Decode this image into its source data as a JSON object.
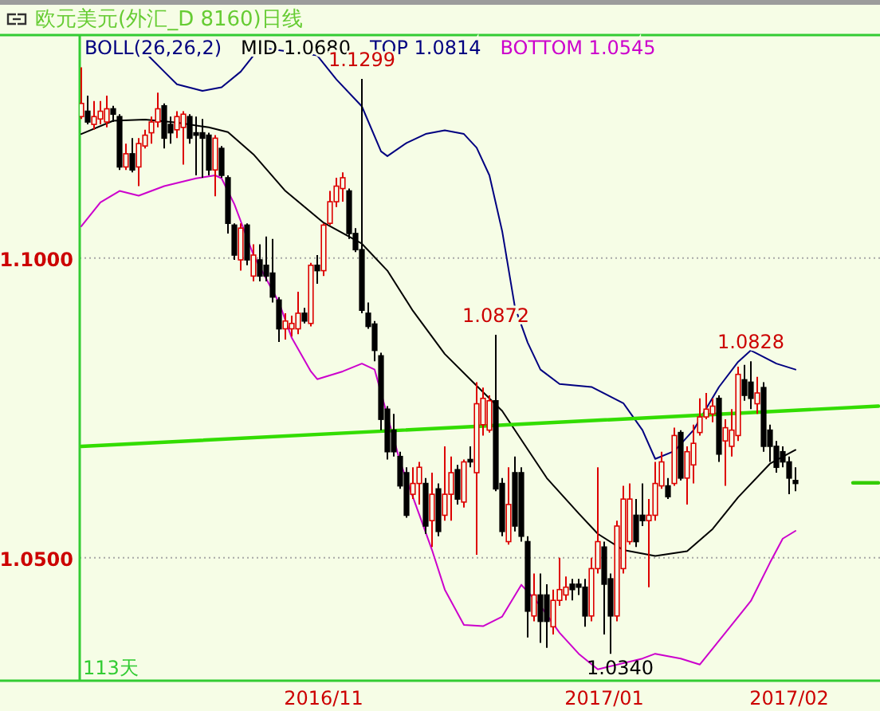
{
  "chart_data": {
    "type": "candlestick",
    "title": "欧元美元(外汇_D 8160)日线",
    "legend_title": "BOLL(26,26,2)",
    "legend": "top left",
    "grid": "y",
    "ylim": [
      1.0295,
      1.1372
    ],
    "yticks": [
      {
        "value": 1.1,
        "label": "1.1000"
      },
      {
        "value": 1.05,
        "label": "1.0500"
      }
    ],
    "categories": [
      null,
      null,
      null,
      null,
      null,
      null,
      null,
      null,
      null,
      null,
      null,
      null,
      null,
      null,
      null,
      null,
      null,
      null,
      null,
      null,
      null,
      null,
      null,
      null,
      null,
      null,
      null,
      null,
      null,
      null,
      null,
      null,
      null,
      null,
      null,
      null,
      null,
      null,
      "2016/11",
      null,
      null,
      null,
      null,
      null,
      null,
      null,
      null,
      null,
      null,
      null,
      null,
      null,
      null,
      null,
      null,
      null,
      null,
      null,
      null,
      null,
      null,
      null,
      null,
      null,
      null,
      null,
      null,
      null,
      null,
      null,
      null,
      null,
      null,
      null,
      null,
      null,
      null,
      null,
      null,
      null,
      null,
      null,
      "2017/01",
      null,
      null,
      null,
      null,
      null,
      null,
      null,
      null,
      null,
      null,
      null,
      null,
      null,
      null,
      null,
      null,
      null,
      null,
      null,
      null,
      null,
      null,
      null,
      null,
      null,
      null,
      null,
      null,
      "2017/02",
      null,
      null,
      null,
      null,
      null,
      null,
      null,
      null,
      null,
      null,
      null,
      null,
      null,
      null
    ],
    "ohlc": [
      [
        1.1236,
        1.1318,
        1.1232,
        1.1258
      ],
      [
        1.1245,
        1.1271,
        1.1223,
        1.1227
      ],
      [
        1.1223,
        1.1262,
        1.1214,
        1.1236
      ],
      [
        1.1232,
        1.1262,
        1.1223,
        1.1245
      ],
      [
        1.1227,
        1.1271,
        1.1218,
        1.1249
      ],
      [
        1.1249,
        1.1254,
        1.1227,
        1.124
      ],
      [
        1.1236,
        1.124,
        1.1147,
        1.1152
      ],
      [
        1.1152,
        1.1191,
        1.1147,
        1.1174
      ],
      [
        1.1174,
        1.12,
        1.1143,
        1.1147
      ],
      [
        1.1152,
        1.12,
        1.112,
        1.1191
      ],
      [
        1.1187,
        1.1214,
        1.1183,
        1.1205
      ],
      [
        1.1209,
        1.1236,
        1.1191,
        1.1227
      ],
      [
        1.1227,
        1.1276,
        1.1218,
        1.1249
      ],
      [
        1.1254,
        1.1258,
        1.1183,
        1.12
      ],
      [
        1.1223,
        1.1236,
        1.1191,
        1.1209
      ],
      [
        1.1214,
        1.1245,
        1.12,
        1.1236
      ],
      [
        1.1218,
        1.1245,
        1.1156,
        1.124
      ],
      [
        1.1236,
        1.124,
        1.1191,
        1.12
      ],
      [
        1.1209,
        1.1236,
        1.1138,
        1.1205
      ],
      [
        1.1209,
        1.1232,
        1.1134,
        1.12
      ],
      [
        1.1205,
        1.1209,
        1.1138,
        1.1147
      ],
      [
        1.1147,
        1.1205,
        1.1103,
        1.12
      ],
      [
        1.1183,
        1.1187,
        1.1134,
        1.1138
      ],
      [
        1.1134,
        1.1138,
        1.1041,
        1.1058
      ],
      [
        1.1055,
        1.1058,
        1.0997,
        1.1005
      ],
      [
        1.0997,
        1.1058,
        1.0979,
        1.105
      ],
      [
        1.1055,
        1.1058,
        1.0988,
        1.0997
      ],
      [
        1.097,
        1.1023,
        1.0961,
        1.1005
      ],
      [
        1.0997,
        1.1023,
        1.0961,
        1.097
      ],
      [
        1.0988,
        1.1036,
        1.0961,
        1.097
      ],
      [
        1.0975,
        1.1032,
        1.0926,
        1.0935
      ],
      [
        1.093,
        1.0935,
        1.086,
        1.0882
      ],
      [
        1.0882,
        1.0908,
        1.0864,
        1.0895
      ],
      [
        1.0882,
        1.0904,
        1.0869,
        1.0891
      ],
      [
        1.0882,
        1.0944,
        1.0873,
        1.0908
      ],
      [
        1.0908,
        1.0917,
        1.0891,
        1.0895
      ],
      [
        1.0891,
        1.0992,
        1.0886,
        1.0988
      ],
      [
        1.0988,
        1.1005,
        1.0957,
        1.0979
      ],
      [
        1.0979,
        1.1058,
        1.097,
        1.1055
      ],
      [
        1.1058,
        1.1112,
        1.1055,
        1.1094
      ],
      [
        1.1094,
        1.1134,
        1.1085,
        1.112
      ],
      [
        1.1116,
        1.1143,
        1.1094,
        1.1134
      ],
      [
        1.1112,
        1.1116,
        1.1032,
        1.1041
      ],
      [
        1.1041,
        1.105,
        1.101,
        1.1014
      ],
      [
        1.1014,
        1.1299,
        1.0908,
        1.0913
      ],
      [
        1.0908,
        1.0926,
        1.0882,
        1.0886
      ],
      [
        1.089,
        1.0895,
        1.0828,
        1.0846
      ],
      [
        1.0837,
        1.0842,
        1.0713,
        1.0731
      ],
      [
        1.0748,
        1.0753,
        1.0664,
        1.0677
      ],
      [
        1.0713,
        1.074,
        1.0669,
        1.0677
      ],
      [
        1.0669,
        1.0677,
        1.0615,
        1.062
      ],
      [
        1.0642,
        1.0651,
        1.0567,
        1.0571
      ],
      [
        1.0606,
        1.0651,
        1.0598,
        1.0624
      ],
      [
        1.0624,
        1.066,
        1.0589,
        1.0651
      ],
      [
        1.0624,
        1.0633,
        1.054,
        1.0553
      ],
      [
        1.0562,
        1.0642,
        1.0518,
        1.0606
      ],
      [
        1.0615,
        1.0624,
        1.0536,
        1.0544
      ],
      [
        1.0571,
        1.0686,
        1.0562,
        1.0606
      ],
      [
        1.0606,
        1.0669,
        1.0562,
        1.0642
      ],
      [
        1.0647,
        1.0655,
        1.0589,
        1.0598
      ],
      [
        1.0593,
        1.0664,
        1.0584,
        1.066
      ],
      [
        1.0664,
        1.0686,
        1.0651,
        1.066
      ],
      [
        1.0642,
        1.0793,
        1.0505,
        1.0757
      ],
      [
        1.0722,
        1.0784,
        1.0704,
        1.0766
      ],
      [
        1.0713,
        1.0771,
        1.0709,
        1.0762
      ],
      [
        1.0762,
        1.0872,
        1.0611,
        1.0615
      ],
      [
        1.0624,
        1.0633,
        1.0536,
        1.0544
      ],
      [
        1.0527,
        1.0651,
        1.0522,
        1.0589
      ],
      [
        1.0642,
        1.0669,
        1.0544,
        1.0553
      ],
      [
        1.0642,
        1.0651,
        1.0527,
        1.0536
      ],
      [
        1.0527,
        1.0536,
        1.0367,
        1.0411
      ],
      [
        1.0403,
        1.0474,
        1.0394,
        1.0438
      ],
      [
        1.0438,
        1.0474,
        1.0358,
        1.0394
      ],
      [
        1.0438,
        1.0456,
        1.035,
        1.0394
      ],
      [
        1.0385,
        1.0447,
        1.0372,
        1.0429
      ],
      [
        1.0429,
        1.05,
        1.042,
        1.0447
      ],
      [
        1.0438,
        1.0469,
        1.0429,
        1.0451
      ],
      [
        1.0456,
        1.0465,
        1.0429,
        1.0447
      ],
      [
        1.0456,
        1.0465,
        1.0438,
        1.0451
      ],
      [
        1.0451,
        1.0465,
        1.0385,
        1.0403
      ],
      [
        1.0403,
        1.05,
        1.0394,
        1.0482
      ],
      [
        1.0482,
        1.0651,
        1.0474,
        1.0527
      ],
      [
        1.0518,
        1.0527,
        1.0372,
        1.0456
      ],
      [
        1.0465,
        1.0474,
        1.034,
        1.0403
      ],
      [
        1.0403,
        1.0562,
        1.0394,
        1.0553
      ],
      [
        1.0482,
        1.062,
        1.0474,
        1.0598
      ],
      [
        1.0527,
        1.0624,
        1.0522,
        1.0598
      ],
      [
        1.0571,
        1.0598,
        1.0518,
        1.0527
      ],
      [
        1.0571,
        1.0624,
        1.0553,
        1.0562
      ],
      [
        1.0562,
        1.0598,
        1.0451,
        1.0571
      ],
      [
        1.0571,
        1.066,
        1.0562,
        1.0624
      ],
      [
        1.062,
        1.0677,
        1.0615,
        1.066
      ],
      [
        1.062,
        1.0633,
        1.0598,
        1.0602
      ],
      [
        1.0624,
        1.0717,
        1.062,
        1.0704
      ],
      [
        1.0709,
        1.0713,
        1.0629,
        1.0633
      ],
      [
        1.0633,
        1.0686,
        1.0589,
        1.0677
      ],
      [
        1.0655,
        1.0722,
        1.0624,
        1.0691
      ],
      [
        1.0709,
        1.0766,
        1.0704,
        1.0735
      ],
      [
        1.0735,
        1.0775,
        1.0731,
        1.0748
      ],
      [
        1.074,
        1.0766,
        1.0726,
        1.0753
      ],
      [
        1.0766,
        1.0771,
        1.066,
        1.0673
      ],
      [
        1.0695,
        1.0731,
        1.062,
        1.0717
      ],
      [
        1.0686,
        1.0748,
        1.0669,
        1.0713
      ],
      [
        1.0704,
        1.0819,
        1.0695,
        1.0806
      ],
      [
        1.0797,
        1.0822,
        1.0762,
        1.0771
      ],
      [
        1.0793,
        1.0828,
        1.0748,
        1.0766
      ],
      [
        1.0757,
        1.0802,
        1.074,
        1.0775
      ],
      [
        1.0784,
        1.0793,
        1.0677,
        1.0686
      ],
      [
        1.0713,
        1.0722,
        1.066,
        1.0686
      ],
      [
        1.0686,
        1.0695,
        1.0642,
        1.0651
      ],
      [
        1.0677,
        1.0686,
        1.0651,
        1.066
      ],
      [
        1.066,
        1.0669,
        1.0606,
        1.0633
      ],
      [
        1.0629,
        1.0651,
        1.0611,
        1.0624
      ],
      null,
      null,
      null,
      null,
      null,
      null,
      null,
      null,
      null,
      null,
      null,
      null,
      null
    ],
    "series": [
      {
        "name": "MID 1.0680",
        "type": "line",
        "color": "#000000",
        "values": [
          1.1207,
          null,
          null,
          null,
          null,
          1.1229,
          null,
          null,
          null,
          null,
          1.1231,
          null,
          null,
          null,
          null,
          1.1226,
          null,
          null,
          null,
          null,
          1.1218,
          null,
          null,
          1.121,
          null,
          null,
          null,
          1.1173,
          null,
          null,
          null,
          null,
          1.1112,
          null,
          null,
          null,
          null,
          null,
          1.1059,
          null,
          null,
          null,
          null,
          null,
          1.1024,
          null,
          null,
          null,
          1.0979,
          null,
          null,
          null,
          1.0912,
          null,
          null,
          null,
          null,
          1.084,
          null,
          null,
          null,
          null,
          1.0787,
          null,
          null,
          null,
          1.0745,
          null,
          null,
          null,
          1.0681,
          null,
          null,
          1.0633,
          null,
          null,
          null,
          null,
          1.0574,
          null,
          null,
          1.054,
          null,
          null,
          null,
          1.0513,
          null,
          null,
          null,
          null,
          1.0503,
          null,
          null,
          null,
          null,
          1.0511,
          null,
          null,
          null,
          1.0548,
          null,
          null,
          null,
          1.0601,
          null,
          null,
          null,
          null,
          1.0657,
          null,
          null,
          null,
          1.068,
          null,
          null,
          null,
          null,
          null,
          null,
          null,
          null,
          null,
          null,
          null,
          null,
          null
        ]
      },
      {
        "name": "TOP 1.0814",
        "type": "line",
        "color": "#000080",
        "values": [
          null,
          null,
          null,
          null,
          null,
          null,
          null,
          null,
          null,
          null,
          1.1343,
          null,
          null,
          1.1311,
          null,
          1.129,
          null,
          null,
          null,
          1.1279,
          null,
          null,
          1.1285,
          null,
          null,
          1.1311,
          null,
          1.1338,
          1.1351,
          null,
          null,
          null,
          null,
          null,
          null,
          null,
          null,
          1.1338,
          null,
          null,
          1.1298,
          null,
          null,
          null,
          1.1253,
          null,
          null,
          1.1178,
          1.117,
          null,
          null,
          1.1192,
          null,
          null,
          1.1207,
          null,
          null,
          1.1213,
          null,
          null,
          1.1207,
          null,
          1.1184,
          null,
          1.1138,
          null,
          1.1045,
          null,
          1.0918,
          null,
          1.0859,
          null,
          1.0814,
          null,
          null,
          1.079,
          null,
          null,
          null,
          null,
          1.0785,
          null,
          null,
          null,
          null,
          1.0758,
          null,
          null,
          1.0713,
          null,
          1.0665,
          null,
          null,
          1.0678,
          null,
          null,
          1.0713,
          null,
          null,
          null,
          1.0785,
          null,
          null,
          1.0827,
          null,
          1.0846,
          null,
          null,
          null,
          1.0824,
          null,
          null,
          1.0814,
          null,
          null,
          null,
          null,
          null,
          null,
          null,
          null,
          null,
          null,
          null,
          null,
          null
        ]
      },
      {
        "name": "BOTTOM 1.0545",
        "type": "line",
        "color": "#cc00cc",
        "values": [
          1.1053,
          null,
          null,
          1.1093,
          null,
          null,
          1.1112,
          null,
          null,
          1.1104,
          null,
          null,
          null,
          1.112,
          null,
          null,
          null,
          null,
          1.1133,
          null,
          null,
          1.1138,
          1.1133,
          null,
          1.109,
          null,
          null,
          1.1005,
          null,
          null,
          null,
          1.0926,
          null,
          1.0867,
          null,
          null,
          1.0811,
          1.0798,
          null,
          null,
          null,
          1.0811,
          null,
          null,
          1.0824,
          null,
          1.0814,
          null,
          null,
          null,
          1.066,
          null,
          null,
          1.0572,
          null,
          1.0513,
          null,
          1.0447,
          null,
          null,
          1.0388,
          null,
          null,
          1.0386,
          null,
          null,
          1.0402,
          null,
          null,
          1.0455,
          null,
          null,
          1.042,
          null,
          null,
          1.0375,
          null,
          null,
          1.034,
          null,
          null,
          1.0314,
          null,
          null,
          null,
          null,
          null,
          null,
          1.0332,
          null,
          1.034,
          null,
          null,
          null,
          1.0332,
          null,
          null,
          1.0322,
          null,
          null,
          null,
          1.0375,
          null,
          null,
          null,
          1.0428,
          null,
          null,
          1.0492,
          null,
          1.0532,
          null,
          1.0545,
          null,
          null,
          null,
          null,
          null,
          null,
          null,
          null,
          null,
          null,
          null,
          null,
          null
        ]
      },
      {
        "type": "line",
        "color": "#33dd00",
        "values": [
          1.0686,
          null,
          null,
          null,
          null,
          null,
          null,
          null,
          null,
          null,
          null,
          null,
          null,
          null,
          null,
          null,
          null,
          null,
          null,
          null,
          null,
          null,
          null,
          null,
          null,
          null,
          null,
          null,
          null,
          null,
          null,
          null,
          null,
          null,
          null,
          null,
          null,
          null,
          null,
          null,
          null,
          null,
          null,
          null,
          null,
          null,
          null,
          null,
          null,
          null,
          null,
          null,
          null,
          null,
          null,
          null,
          null,
          null,
          null,
          null,
          null,
          null,
          null,
          null,
          null,
          null,
          null,
          null,
          null,
          null,
          null,
          null,
          null,
          null,
          null,
          null,
          null,
          null,
          null,
          null,
          null,
          null,
          null,
          null,
          null,
          null,
          null,
          null,
          null,
          null,
          null,
          null,
          null,
          null,
          null,
          null,
          null,
          null,
          null,
          null,
          null,
          null,
          null,
          null,
          null,
          null,
          null,
          null,
          null,
          null,
          null,
          null,
          null,
          null,
          null,
          null,
          null,
          null,
          null,
          null,
          null,
          null,
          null,
          null,
          null,
          1.0753
        ]
      },
      {
        "type": "line",
        "color": "#33cc00",
        "values": [
          null,
          null,
          null,
          null,
          null,
          null,
          null,
          null,
          null,
          null,
          null,
          null,
          null,
          null,
          null,
          null,
          null,
          null,
          null,
          null,
          null,
          null,
          null,
          null,
          null,
          null,
          null,
          null,
          null,
          null,
          null,
          null,
          null,
          null,
          null,
          null,
          null,
          null,
          null,
          null,
          null,
          null,
          null,
          null,
          null,
          null,
          null,
          null,
          null,
          null,
          null,
          null,
          null,
          null,
          null,
          null,
          null,
          null,
          null,
          null,
          null,
          null,
          null,
          null,
          null,
          null,
          null,
          null,
          null,
          null,
          null,
          null,
          null,
          null,
          null,
          null,
          null,
          null,
          null,
          null,
          null,
          null,
          null,
          null,
          null,
          null,
          null,
          null,
          null,
          null,
          null,
          null,
          null,
          null,
          null,
          null,
          null,
          null,
          null,
          null,
          null,
          null,
          null,
          null,
          null,
          null,
          null,
          null,
          null,
          null,
          null,
          null,
          null,
          null,
          null,
          null,
          null,
          null,
          null,
          null,
          null,
          1.0625,
          null,
          null,
          null,
          1.0625
        ]
      }
    ],
    "annotations": [
      "113天",
      {
        "text": "1.1299",
        "y": 1.1299
      },
      {
        "text": "1.0872",
        "y": 1.0872
      },
      {
        "text": "1.0828",
        "y": 1.0828
      },
      "1.0340"
    ]
  }
}
